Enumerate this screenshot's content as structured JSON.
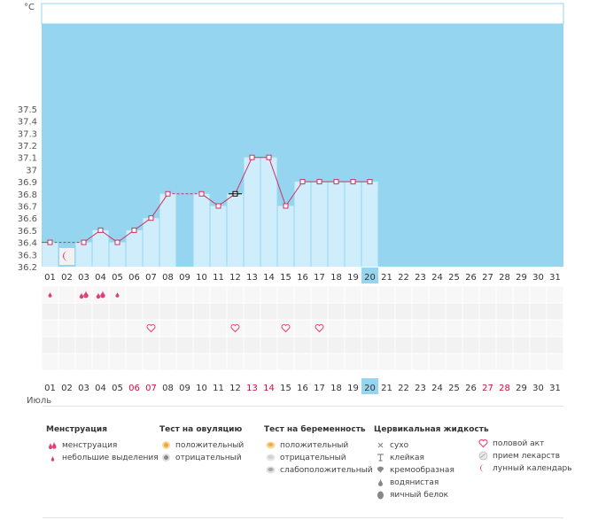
{
  "chart": {
    "unit": "°C",
    "month": "Июль",
    "yticks": [
      "37.5",
      "37.4",
      "37.3",
      "37.2",
      "37.1",
      "37",
      "36.9",
      "36.8",
      "36.7",
      "36.6",
      "36.5",
      "36.4",
      "36.3",
      "36.2"
    ],
    "days": [
      "01",
      "02",
      "03",
      "04",
      "05",
      "06",
      "07",
      "08",
      "09",
      "10",
      "11",
      "12",
      "13",
      "14",
      "15",
      "16",
      "17",
      "18",
      "19",
      "20",
      "21",
      "22",
      "23",
      "24",
      "25",
      "26",
      "27",
      "28",
      "29",
      "30",
      "31"
    ],
    "highlight_day": "20",
    "red_bottom_days": [
      "06",
      "07",
      "13",
      "14",
      "27",
      "28"
    ],
    "colors": {
      "bg": "#96d5f0",
      "bar": "#d0edfb",
      "line": "#d0305f",
      "marker_fill": "#ffffff",
      "highlight": "#96d5f0"
    }
  },
  "chart_data": {
    "type": "bar",
    "categories": [
      "01",
      "02",
      "03",
      "04",
      "05",
      "06",
      "07",
      "08",
      "09",
      "10",
      "11",
      "12",
      "13",
      "14",
      "15",
      "16",
      "17",
      "18",
      "19",
      "20",
      "21",
      "22",
      "23",
      "24",
      "25",
      "26",
      "27",
      "28",
      "29",
      "30",
      "31"
    ],
    "values": [
      36.4,
      null,
      36.4,
      36.5,
      36.4,
      36.5,
      36.6,
      36.8,
      null,
      36.8,
      36.7,
      36.8,
      37.1,
      37.1,
      36.7,
      36.9,
      36.9,
      36.9,
      36.9,
      36.9,
      null,
      null,
      null,
      null,
      null,
      null,
      null,
      null,
      null,
      null,
      null
    ],
    "xlabel": "Июль",
    "ylabel": "°C",
    "ylim": [
      36.2,
      37.6
    ],
    "grid": true
  },
  "symbols": {
    "menstruation": [
      {
        "day": "01",
        "type": "light"
      },
      {
        "day": "03",
        "type": "heavy"
      },
      {
        "day": "04",
        "type": "heavy"
      },
      {
        "day": "05",
        "type": "light"
      }
    ],
    "moon_day": "02",
    "intercourse_days": [
      "07",
      "12",
      "15",
      "17"
    ]
  },
  "legend": {
    "menstruation": {
      "title": "Менструация",
      "items": [
        "менструация",
        "небольшие выделения"
      ]
    },
    "ovulation_test": {
      "title": "Тест на овуляцию",
      "items": [
        "положительный",
        "отрицательный"
      ]
    },
    "pregnancy_test": {
      "title": "Тест на беременность",
      "items": [
        "положительный",
        "отрицательный",
        "слабоположительный"
      ]
    },
    "cervical_fluid": {
      "title": "Цервикальная жидкость",
      "items": [
        "сухо",
        "клейкая",
        "кремообразная",
        "водянистая",
        "яичный белок"
      ]
    },
    "other": {
      "items": [
        "половой акт",
        "прием лекарств",
        "лунный календарь"
      ]
    }
  }
}
